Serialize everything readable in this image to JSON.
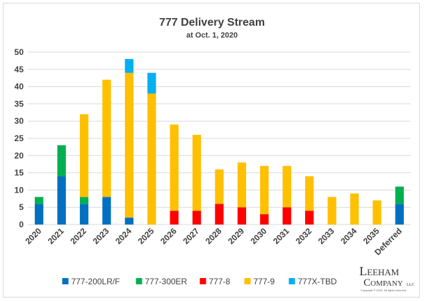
{
  "chart_data": {
    "type": "bar",
    "stacked": true,
    "title": "777 Delivery Stream",
    "subtitle": "at Oct. 1, 2020",
    "xlabel": "",
    "ylabel": "",
    "ylim": [
      0,
      50
    ],
    "yticks": [
      0,
      5,
      10,
      15,
      20,
      25,
      30,
      35,
      40,
      45,
      50
    ],
    "grid": true,
    "legend_position": "bottom",
    "categories": [
      "2020",
      "2021",
      "2022",
      "2023",
      "2024",
      "2025",
      "2026",
      "2027",
      "2028",
      "2029",
      "2030",
      "2031",
      "2032",
      "2033",
      "2034",
      "2035",
      "Deferred"
    ],
    "series": [
      {
        "name": "777-200LR/F",
        "color": "#0070c0",
        "values": [
          6,
          14,
          6,
          8,
          2,
          0,
          0,
          0,
          0,
          0,
          0,
          0,
          0,
          0,
          0,
          0,
          6
        ]
      },
      {
        "name": "777-300ER",
        "color": "#00b050",
        "values": [
          2,
          9,
          2,
          0,
          0,
          0,
          0,
          0,
          0,
          0,
          0,
          0,
          0,
          0,
          0,
          0,
          5
        ]
      },
      {
        "name": "777-8",
        "color": "#ff0000",
        "values": [
          0,
          0,
          0,
          0,
          0,
          0,
          4,
          4,
          6,
          5,
          3,
          5,
          4,
          0,
          0,
          0,
          0
        ]
      },
      {
        "name": "777-9",
        "color": "#ffc000",
        "values": [
          0,
          0,
          24,
          34,
          42,
          38,
          25,
          22,
          10,
          13,
          14,
          12,
          10,
          8,
          9,
          7,
          0
        ]
      },
      {
        "name": "777X-TBD",
        "color": "#00b0f0",
        "values": [
          0,
          0,
          0,
          0,
          4,
          6,
          0,
          0,
          0,
          0,
          0,
          0,
          0,
          0,
          0,
          0,
          0
        ]
      }
    ]
  },
  "logo": {
    "line1_initial": "L",
    "line1_rest": "EEHAM",
    "line2_initial": "C",
    "line2_rest": "OMPANY",
    "suffix": "LLC",
    "copyright": "Copyright © 2020. All rights reserved."
  }
}
